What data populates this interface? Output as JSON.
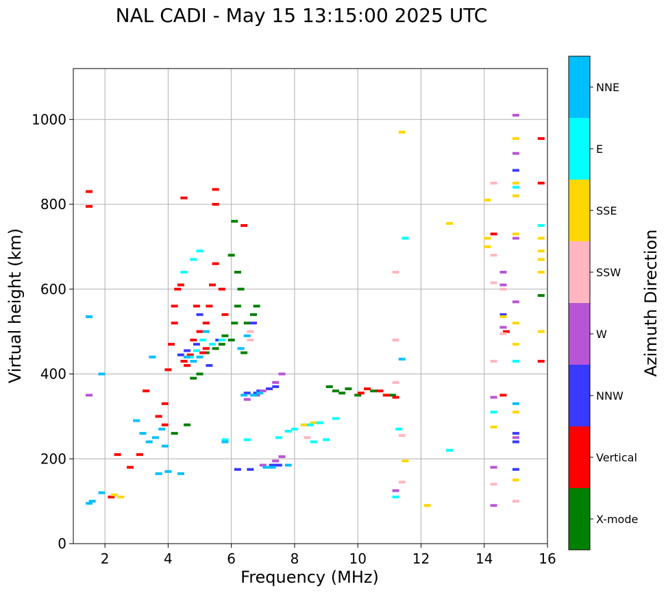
{
  "chart_data": {
    "type": "scatter",
    "title": "NAL CADI - May 15 13:15:00 2025 UTC",
    "xlabel": "Frequency (MHz)",
    "ylabel": "Virtual height (km)",
    "xlim": [
      1.0,
      16.0
    ],
    "ylim": [
      0,
      1120
    ],
    "xticks": [
      2,
      4,
      6,
      8,
      10,
      12,
      14,
      16
    ],
    "yticks": [
      0,
      200,
      400,
      600,
      800,
      1000
    ],
    "grid": true,
    "colorbar": {
      "title": "Azimuth Direction",
      "categories": [
        {
          "label": "X-mode",
          "color": "#008000"
        },
        {
          "label": "Vertical",
          "color": "#ff0000"
        },
        {
          "label": "NNW",
          "color": "#3a3aff"
        },
        {
          "label": "W",
          "color": "#b855d6"
        },
        {
          "label": "SSW",
          "color": "#ffb6c1"
        },
        {
          "label": "SSE",
          "color": "#ffd700"
        },
        {
          "label": "E",
          "color": "#00ffff"
        },
        {
          "label": "NNE",
          "color": "#00bfff"
        }
      ]
    },
    "series": [
      {
        "name": "X-mode",
        "points": [
          [
            4.6,
            280
          ],
          [
            4.8,
            390
          ],
          [
            5.0,
            400
          ],
          [
            5.2,
            450
          ],
          [
            5.5,
            460
          ],
          [
            5.7,
            470
          ],
          [
            5.8,
            490
          ],
          [
            6.0,
            480
          ],
          [
            6.1,
            520
          ],
          [
            6.2,
            560
          ],
          [
            6.3,
            600
          ],
          [
            6.2,
            640
          ],
          [
            6.0,
            680
          ],
          [
            6.4,
            450
          ],
          [
            6.5,
            520
          ],
          [
            6.7,
            540
          ],
          [
            6.8,
            560
          ],
          [
            6.1,
            760
          ],
          [
            9.1,
            370
          ],
          [
            9.3,
            360
          ],
          [
            9.5,
            355
          ],
          [
            9.7,
            365
          ],
          [
            10.0,
            350
          ],
          [
            10.5,
            360
          ],
          [
            11.1,
            350
          ],
          [
            15.8,
            585
          ],
          [
            4.2,
            260
          ]
        ]
      },
      {
        "name": "Vertical",
        "points": [
          [
            1.5,
            795
          ],
          [
            1.5,
            830
          ],
          [
            2.4,
            210
          ],
          [
            2.8,
            180
          ],
          [
            3.1,
            210
          ],
          [
            3.3,
            360
          ],
          [
            3.7,
            300
          ],
          [
            3.9,
            280
          ],
          [
            3.9,
            330
          ],
          [
            4.0,
            410
          ],
          [
            4.1,
            470
          ],
          [
            4.2,
            520
          ],
          [
            4.2,
            560
          ],
          [
            4.3,
            600
          ],
          [
            4.4,
            610
          ],
          [
            4.5,
            430
          ],
          [
            4.6,
            420
          ],
          [
            4.7,
            445
          ],
          [
            4.5,
            815
          ],
          [
            4.8,
            480
          ],
          [
            5.0,
            500
          ],
          [
            5.1,
            450
          ],
          [
            5.2,
            460
          ],
          [
            5.3,
            560
          ],
          [
            5.4,
            610
          ],
          [
            5.5,
            660
          ],
          [
            5.5,
            800
          ],
          [
            5.5,
            835
          ],
          [
            5.2,
            520
          ],
          [
            4.9,
            560
          ],
          [
            5.7,
            600
          ],
          [
            5.8,
            540
          ],
          [
            6.4,
            750
          ],
          [
            10.1,
            355
          ],
          [
            10.3,
            365
          ],
          [
            10.7,
            360
          ],
          [
            10.9,
            350
          ],
          [
            11.2,
            345
          ],
          [
            14.3,
            730
          ],
          [
            14.7,
            500
          ],
          [
            14.6,
            350
          ],
          [
            15.8,
            955
          ],
          [
            15.8,
            850
          ],
          [
            15.8,
            430
          ],
          [
            2.2,
            110
          ]
        ]
      },
      {
        "name": "NNW",
        "points": [
          [
            4.4,
            445
          ],
          [
            4.6,
            455
          ],
          [
            4.9,
            470
          ],
          [
            5.0,
            540
          ],
          [
            5.3,
            420
          ],
          [
            5.6,
            480
          ],
          [
            6.5,
            355
          ],
          [
            6.8,
            355
          ],
          [
            6.9,
            360
          ],
          [
            7.2,
            365
          ],
          [
            7.4,
            370
          ],
          [
            7.3,
            185
          ],
          [
            7.5,
            185
          ],
          [
            6.7,
            520
          ],
          [
            6.2,
            175
          ],
          [
            6.6,
            175
          ],
          [
            14.6,
            540
          ],
          [
            15.0,
            880
          ],
          [
            15.0,
            240
          ],
          [
            15.0,
            175
          ],
          [
            15.0,
            260
          ]
        ]
      },
      {
        "name": "W",
        "points": [
          [
            6.5,
            340
          ],
          [
            6.8,
            350
          ],
          [
            7.0,
            360
          ],
          [
            7.4,
            380
          ],
          [
            7.6,
            400
          ],
          [
            7.0,
            185
          ],
          [
            7.4,
            195
          ],
          [
            7.6,
            205
          ],
          [
            1.5,
            350
          ],
          [
            14.3,
            345
          ],
          [
            14.3,
            180
          ],
          [
            14.6,
            640
          ],
          [
            14.6,
            610
          ],
          [
            15.0,
            720
          ],
          [
            15.0,
            570
          ],
          [
            15.0,
            920
          ],
          [
            15.0,
            1010
          ],
          [
            14.3,
            90
          ],
          [
            14.6,
            510
          ],
          [
            15.0,
            250
          ],
          [
            11.2,
            125
          ]
        ]
      },
      {
        "name": "SSW",
        "points": [
          [
            6.6,
            500
          ],
          [
            6.6,
            480
          ],
          [
            8.4,
            250
          ],
          [
            11.2,
            380
          ],
          [
            11.2,
            640
          ],
          [
            11.2,
            480
          ],
          [
            14.3,
            615
          ],
          [
            14.3,
            680
          ],
          [
            14.3,
            430
          ],
          [
            14.3,
            850
          ],
          [
            14.3,
            140
          ],
          [
            15.0,
            100
          ],
          [
            11.4,
            145
          ],
          [
            11.4,
            255
          ],
          [
            14.6,
            600
          ],
          [
            14.6,
            495
          ]
        ]
      },
      {
        "name": "SSE",
        "points": [
          [
            2.3,
            115
          ],
          [
            2.5,
            110
          ],
          [
            7.8,
            265
          ],
          [
            8.3,
            280
          ],
          [
            8.6,
            285
          ],
          [
            11.4,
            970
          ],
          [
            12.9,
            755
          ],
          [
            14.1,
            810
          ],
          [
            14.1,
            720
          ],
          [
            14.3,
            275
          ],
          [
            15.0,
            955
          ],
          [
            15.0,
            850
          ],
          [
            15.0,
            820
          ],
          [
            15.0,
            730
          ],
          [
            15.0,
            520
          ],
          [
            15.0,
            470
          ],
          [
            15.0,
            310
          ],
          [
            15.0,
            150
          ],
          [
            15.8,
            720
          ],
          [
            15.8,
            690
          ],
          [
            15.8,
            670
          ],
          [
            15.8,
            640
          ],
          [
            15.8,
            500
          ],
          [
            12.2,
            90
          ],
          [
            11.5,
            195
          ],
          [
            14.6,
            535
          ],
          [
            14.1,
            700
          ]
        ]
      },
      {
        "name": "E",
        "points": [
          [
            4.7,
            440
          ],
          [
            4.9,
            455
          ],
          [
            5.1,
            480
          ],
          [
            5.4,
            470
          ],
          [
            5.7,
            480
          ],
          [
            4.5,
            640
          ],
          [
            4.8,
            670
          ],
          [
            5.0,
            690
          ],
          [
            7.5,
            250
          ],
          [
            7.8,
            265
          ],
          [
            8.0,
            270
          ],
          [
            8.5,
            280
          ],
          [
            8.8,
            285
          ],
          [
            9.3,
            295
          ],
          [
            8.6,
            240
          ],
          [
            9.0,
            245
          ],
          [
            5.8,
            245
          ],
          [
            6.5,
            245
          ],
          [
            14.3,
            310
          ],
          [
            15.0,
            430
          ],
          [
            15.0,
            840
          ],
          [
            15.8,
            750
          ],
          [
            11.3,
            270
          ],
          [
            11.5,
            720
          ],
          [
            12.9,
            220
          ],
          [
            11.2,
            110
          ]
        ]
      },
      {
        "name": "NNE",
        "points": [
          [
            1.5,
            95
          ],
          [
            1.6,
            100
          ],
          [
            1.9,
            120
          ],
          [
            3.0,
            290
          ],
          [
            3.2,
            260
          ],
          [
            3.4,
            240
          ],
          [
            3.6,
            250
          ],
          [
            3.8,
            270
          ],
          [
            3.9,
            230
          ],
          [
            3.7,
            165
          ],
          [
            4.0,
            170
          ],
          [
            4.4,
            165
          ],
          [
            4.6,
            440
          ],
          [
            4.8,
            430
          ],
          [
            5.0,
            440
          ],
          [
            5.2,
            500
          ],
          [
            6.5,
            490
          ],
          [
            6.3,
            460
          ],
          [
            6.4,
            350
          ],
          [
            6.7,
            350
          ],
          [
            6.9,
            355
          ],
          [
            7.1,
            180
          ],
          [
            7.3,
            180
          ],
          [
            7.8,
            185
          ],
          [
            1.5,
            535
          ],
          [
            1.9,
            400
          ],
          [
            11.4,
            435
          ],
          [
            15.0,
            330
          ],
          [
            3.5,
            440
          ],
          [
            5.8,
            240
          ]
        ]
      }
    ]
  }
}
